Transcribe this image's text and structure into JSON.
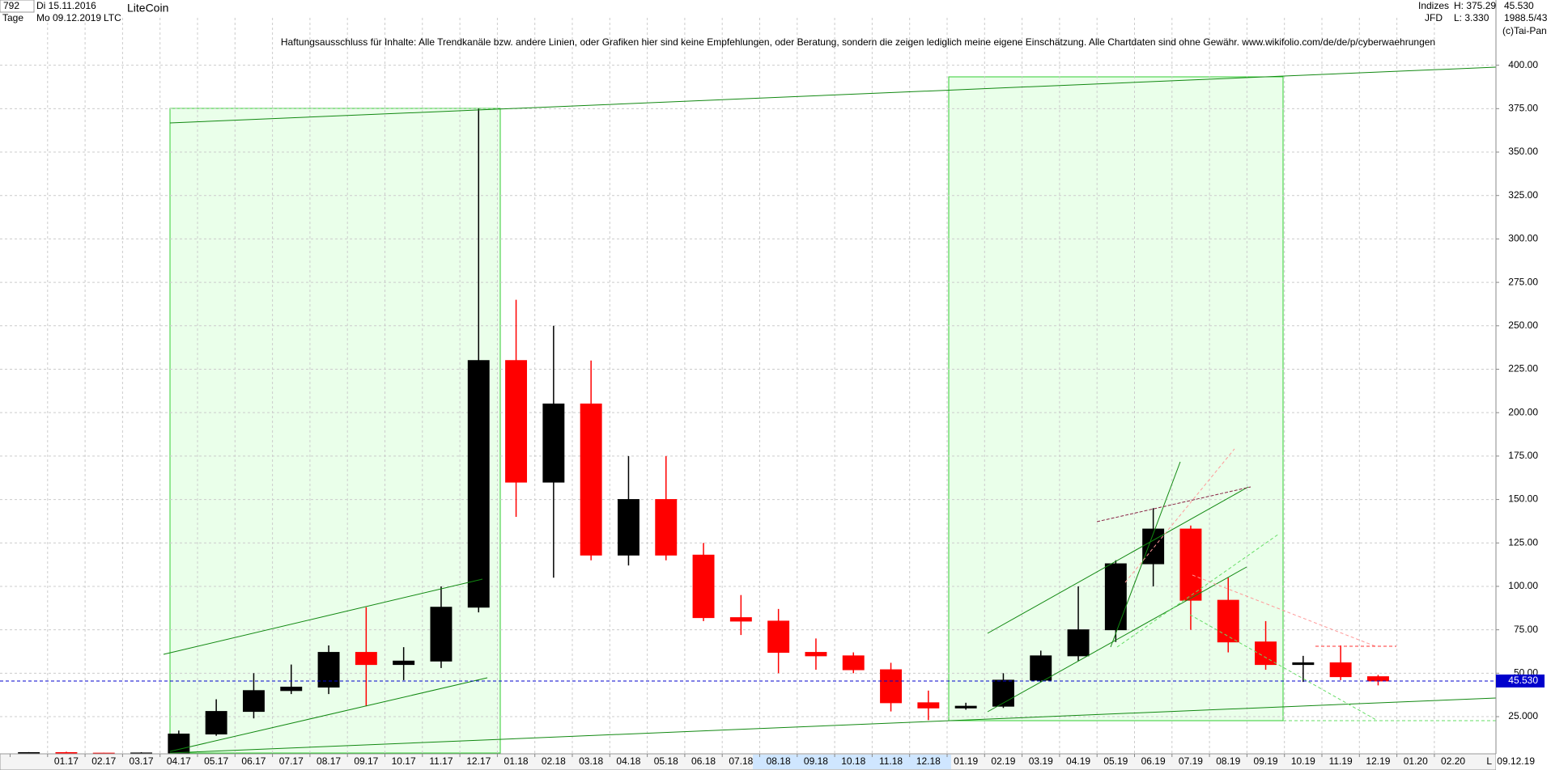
{
  "header": {
    "bars": "792",
    "start_date": "Di 15.11.2016",
    "period": "Tage",
    "end_date": "Mo 09.12.2019",
    "name": "LiteCoin",
    "symbol": "LTC",
    "group": "Indizes",
    "source": "JFD",
    "high": "H: 375.29",
    "low": "L: 3.330",
    "last": "45.530",
    "range": "1988.5/43",
    "copyright": "(c)Tai-Pan",
    "footer_date": "09.12.19",
    "scale": "L"
  },
  "chart_data": {
    "type": "candlestick",
    "title": "Haftungsausschluss für Inhalte: Alle Trendkanäle bzw. andere Linien, oder Grafiken hier sind keine Empfehlungen, oder Beratung, sondern die zeigen lediglich meine eigene Einschätzung. Alle Chartdaten sind ohne Gewähr.  www.wikifolio.com/de/de/p/cyberwaehrungen",
    "categories": [
      null,
      "01.17",
      "02.17",
      "03.17",
      "04.17",
      "05.17",
      "06.17",
      "07.17",
      "08.17",
      "09.17",
      "10.17",
      "11.17",
      "12.17",
      "01.18",
      "02.18",
      "03.18",
      "04.18",
      "05.18",
      "06.18",
      "07.18",
      "08.18",
      "09.18",
      "10.18",
      "11.18",
      "12.18",
      "01.19",
      "02.19",
      "03.19",
      "04.19",
      "05.19",
      "06.19",
      "07.19",
      "08.19",
      "09.19",
      "10.19",
      "11.19",
      "12.19",
      "01.20",
      "02.20"
    ],
    "open": [
      3.9,
      4.3,
      4.0,
      3.8,
      4.1,
      15,
      28,
      40,
      42,
      62,
      55,
      57,
      88,
      230,
      160,
      205,
      118,
      150,
      118,
      82,
      80,
      62,
      60,
      52,
      33,
      30,
      31,
      46,
      60,
      75,
      113,
      133,
      92,
      68,
      55,
      56,
      48,
      null,
      null
    ],
    "high": [
      4.6,
      4.8,
      4.2,
      4.5,
      17,
      35,
      50,
      55,
      66,
      88,
      65,
      100,
      375,
      265,
      250,
      230,
      175,
      175,
      125,
      95,
      87,
      70,
      62,
      56,
      40,
      33,
      50,
      63,
      100,
      115,
      145,
      135,
      105,
      80,
      60,
      66,
      49,
      null,
      null
    ],
    "low": [
      3.3,
      3.6,
      3.7,
      3.7,
      4.0,
      14,
      24,
      38,
      38,
      31,
      46,
      53,
      85,
      140,
      105,
      115,
      112,
      115,
      80,
      72,
      50,
      52,
      50,
      28,
      23,
      29,
      30,
      45,
      57,
      68,
      100,
      75,
      62,
      52,
      45,
      46,
      43,
      null,
      null
    ],
    "close": [
      4.3,
      4.0,
      3.8,
      4.1,
      15,
      28,
      40,
      42,
      62,
      55,
      57,
      88,
      230,
      160,
      205,
      118,
      150,
      118,
      82,
      80,
      62,
      60,
      52,
      33,
      30,
      31,
      46,
      60,
      75,
      113,
      133,
      92,
      68,
      55,
      56,
      48,
      45.53,
      null,
      null
    ],
    "up_color": "#000000",
    "down_color": "#ff0000",
    "ylim": [
      3.6,
      427.3
    ],
    "yticks": [
      {
        "value": 25,
        "label": "25.000"
      },
      {
        "value": 50,
        "label": "50.00"
      },
      {
        "value": 75,
        "label": "75.00"
      },
      {
        "value": 100,
        "label": "100.00"
      },
      {
        "value": 125,
        "label": "125.00"
      },
      {
        "value": 150,
        "label": "150.00"
      },
      {
        "value": 175,
        "label": "175.00"
      },
      {
        "value": 200,
        "label": "200.00"
      },
      {
        "value": 225,
        "label": "225.00"
      },
      {
        "value": 250,
        "label": "250.00"
      },
      {
        "value": 275,
        "label": "275.00"
      },
      {
        "value": 300,
        "label": "300.00"
      },
      {
        "value": 325,
        "label": "325.00"
      },
      {
        "value": 350,
        "label": "350.00"
      },
      {
        "value": 375,
        "label": "375.00"
      },
      {
        "value": 400,
        "label": "400.00"
      }
    ],
    "last_value": {
      "value": 45.53,
      "label": "45.530",
      "color": "#0000cc"
    },
    "grid": true
  }
}
